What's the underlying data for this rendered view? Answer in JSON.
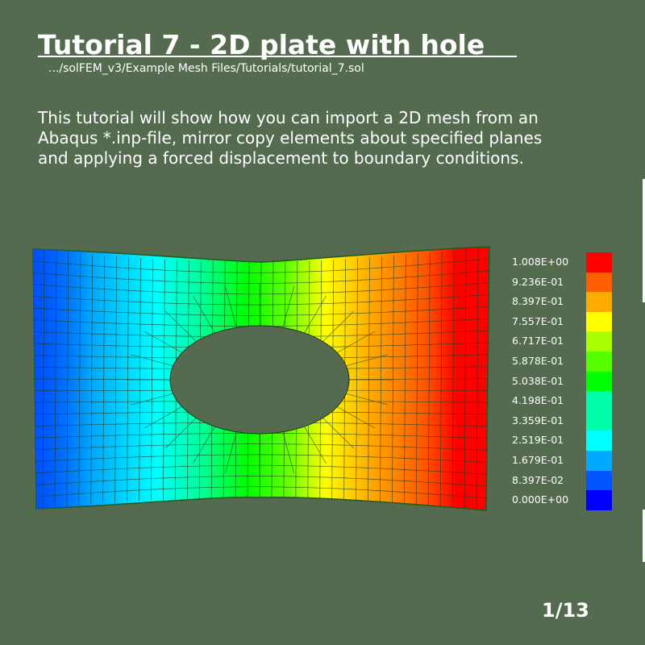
{
  "slide": {
    "title": "Tutorial 7 - 2D plate with hole",
    "file_path": ".../solFEM_v3/Example Mesh Files/Tutorials/tutorial_7.sol",
    "description_lines": [
      "This tutorial will show how you can import a 2D mesh from an",
      "Abaqus *.inp-file, mirror copy elements about specified planes",
      "and applying a forced displacement to boundary conditions."
    ],
    "page_number": "1/13"
  },
  "colors": {
    "background": "#546b50",
    "text": "#ffffff",
    "mesh_lines": "#1c3a1c",
    "plate_outline": "#1f5a1f"
  },
  "legend": {
    "entries": [
      {
        "label": "1.008E+00",
        "color": "#ff0000"
      },
      {
        "label": "9.236E-01",
        "color": "#ff5f00"
      },
      {
        "label": "8.397E-01",
        "color": "#ffaa00"
      },
      {
        "label": "7.557E-01",
        "color": "#ffff00"
      },
      {
        "label": "6.717E-01",
        "color": "#aaff00"
      },
      {
        "label": "5.878E-01",
        "color": "#55ff00"
      },
      {
        "label": "5.038E-01",
        "color": "#00ff00"
      },
      {
        "label": "4.198E-01",
        "color": "#00ffaa"
      },
      {
        "label": "3.359E-01",
        "color": "#00ffaa"
      },
      {
        "label": "2.519E-01",
        "color": "#00ffff"
      },
      {
        "label": "1.679E-01",
        "color": "#00aaff"
      },
      {
        "label": "8.397E-02",
        "color": "#0055ff"
      },
      {
        "label": "0.000E+00",
        "color": "#0000ff"
      }
    ]
  }
}
